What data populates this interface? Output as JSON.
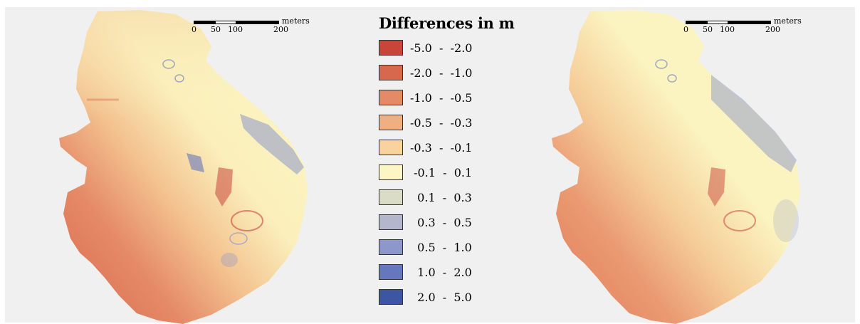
{
  "legend": {
    "title": "Differences in m",
    "items": [
      {
        "label": "-5.0  -  -2.0",
        "color": "#c8453a"
      },
      {
        "label": "-2.0  -  -1.0",
        "color": "#d8684d"
      },
      {
        "label": "-1.0  -  -0.5",
        "color": "#e58a67"
      },
      {
        "label": "-0.5  -  -0.3",
        "color": "#efaf82"
      },
      {
        "label": "-0.3  -  -0.1",
        "color": "#f8d39e"
      },
      {
        "label": " -0.1  -  0.1",
        "color": "#fbf6c4"
      },
      {
        "label": "  0.1  -  0.3",
        "color": "#dbdcc6"
      },
      {
        "label": "  0.3  -  0.5",
        "color": "#b3b6cc"
      },
      {
        "label": "  0.5  -  1.0",
        "color": "#8e97cb"
      },
      {
        "label": "  1.0  -  2.0",
        "color": "#6677bd"
      },
      {
        "label": "  2.0  -  5.0",
        "color": "#3d56a3"
      }
    ]
  },
  "scalebar": {
    "unit": "meters",
    "ticks": [
      "0",
      "50",
      "100",
      "200"
    ]
  }
}
